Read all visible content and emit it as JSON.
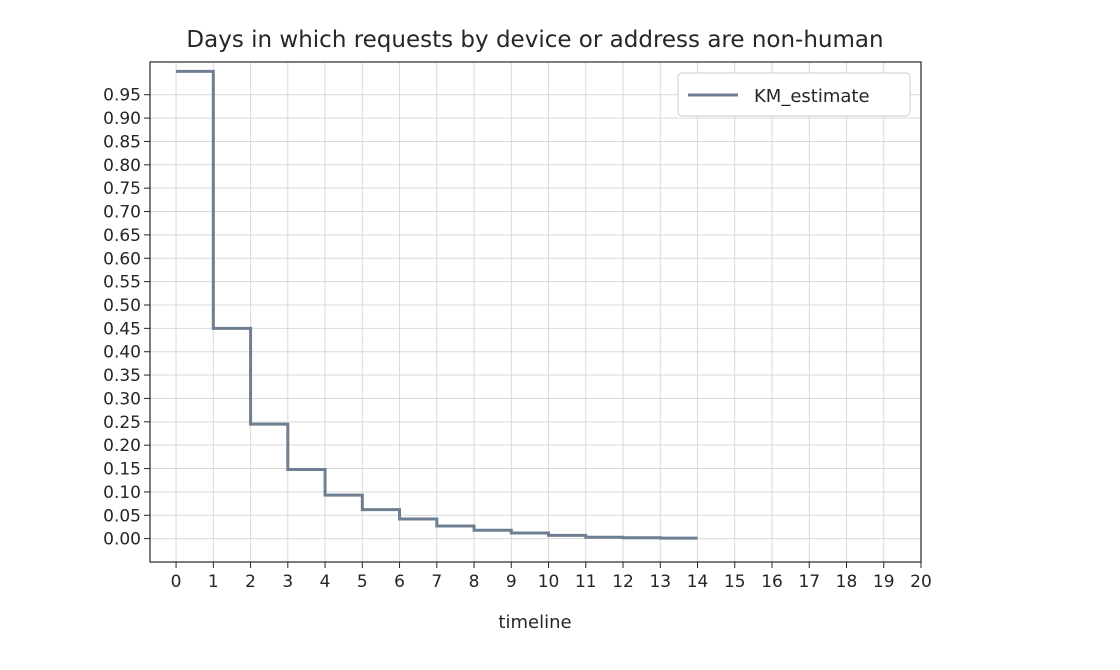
{
  "chart_data": {
    "type": "line",
    "title": "Days in which requests by device or address are non-human",
    "xlabel": "timeline",
    "ylabel": "",
    "xlim": [
      -0.7,
      20
    ],
    "ylim": [
      -0.05,
      1.02
    ],
    "x_ticks": [
      0,
      1,
      2,
      3,
      4,
      5,
      6,
      7,
      8,
      9,
      10,
      11,
      12,
      13,
      14,
      15,
      16,
      17,
      18,
      19,
      20
    ],
    "y_ticks": [
      "0.00",
      "0.05",
      "0.10",
      "0.15",
      "0.20",
      "0.25",
      "0.30",
      "0.35",
      "0.40",
      "0.45",
      "0.50",
      "0.55",
      "0.60",
      "0.65",
      "0.70",
      "0.75",
      "0.80",
      "0.85",
      "0.90",
      "0.95"
    ],
    "grid": true,
    "legend_position": "top-right",
    "series": [
      {
        "name": "KM_estimate",
        "step": "post",
        "color": "#6e7f91",
        "x": [
          0,
          1,
          2,
          3,
          4,
          5,
          6,
          7,
          8,
          9,
          10,
          11,
          12,
          13,
          14
        ],
        "y": [
          1.0,
          0.45,
          0.245,
          0.148,
          0.093,
          0.062,
          0.042,
          0.027,
          0.018,
          0.012,
          0.007,
          0.003,
          0.002,
          0.001,
          0.001
        ]
      }
    ]
  }
}
